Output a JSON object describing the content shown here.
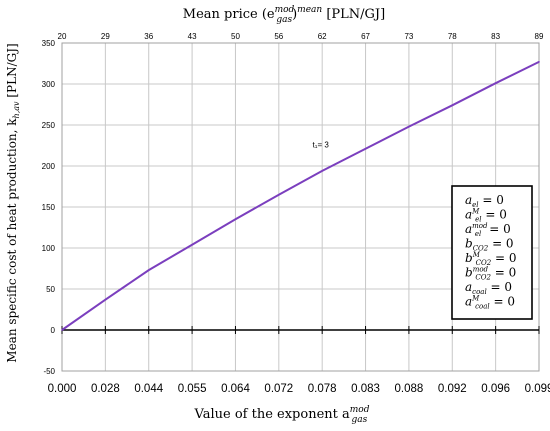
{
  "chart_data": {
    "type": "line",
    "top_axis_title": "Mean price (e",
    "top_axis_title_sup": "mod",
    "top_axis_title_sub": "gas",
    "top_axis_title_rest": ")",
    "top_axis_title_sup2": "mean",
    "top_axis_title_unit": " [PLN/GJ]",
    "xlabel": "Value of the exponent a",
    "xlabel_sup": "mod",
    "xlabel_sub": "gas",
    "ylabel": "Mean specific cost of heat production, k",
    "ylabel_sub": "h,av",
    "ylabel_unit": " [PLN/GJ]",
    "x_tick_labels": [
      "0.000",
      "0.028",
      "0.044",
      "0.055",
      "0.064",
      "0.072",
      "0.078",
      "0.083",
      "0.088",
      "0.092",
      "0.096",
      "0.099"
    ],
    "top_tick_labels": [
      "20",
      "29",
      "36",
      "43",
      "50",
      "56",
      "62",
      "67",
      "73",
      "78",
      "83",
      "89"
    ],
    "y_ticks": [
      -50,
      0,
      50,
      100,
      150,
      200,
      250,
      300,
      350
    ],
    "ylim": [
      -50,
      350
    ],
    "grid": true,
    "series": [
      {
        "color": "#7b3fbe",
        "x_index": [
          0,
          1,
          2,
          3,
          4,
          5,
          6,
          7,
          8,
          9,
          10,
          11
        ],
        "values": [
          0,
          37,
          73,
          104,
          135,
          165,
          194,
          221,
          248,
          274,
          301,
          327
        ]
      }
    ],
    "annotation": {
      "text": "t₁= 3",
      "x_index": 6.1,
      "y": 215
    },
    "legend_box": {
      "placement": "bottom-right",
      "lines": [
        {
          "base": "a",
          "sub": "el",
          "sup": "",
          "rest": " = 0"
        },
        {
          "base": "a",
          "sub": "el",
          "sup": "M",
          "rest": " = 0"
        },
        {
          "base": "a",
          "sub": "el",
          "sup": "mod",
          "rest": " = 0"
        },
        {
          "base": "b",
          "sub": "CO2",
          "sup": "",
          "rest": " = 0"
        },
        {
          "base": "b",
          "sub": "CO2",
          "sup": "M",
          "rest": " = 0"
        },
        {
          "base": "b",
          "sub": "CO2",
          "sup": "mod",
          "rest": " = 0"
        },
        {
          "base": "a",
          "sub": "coal",
          "sup": "",
          "rest": " = 0"
        },
        {
          "base": "a",
          "sub": "coal",
          "sup": "M",
          "rest": " = 0"
        }
      ]
    }
  }
}
